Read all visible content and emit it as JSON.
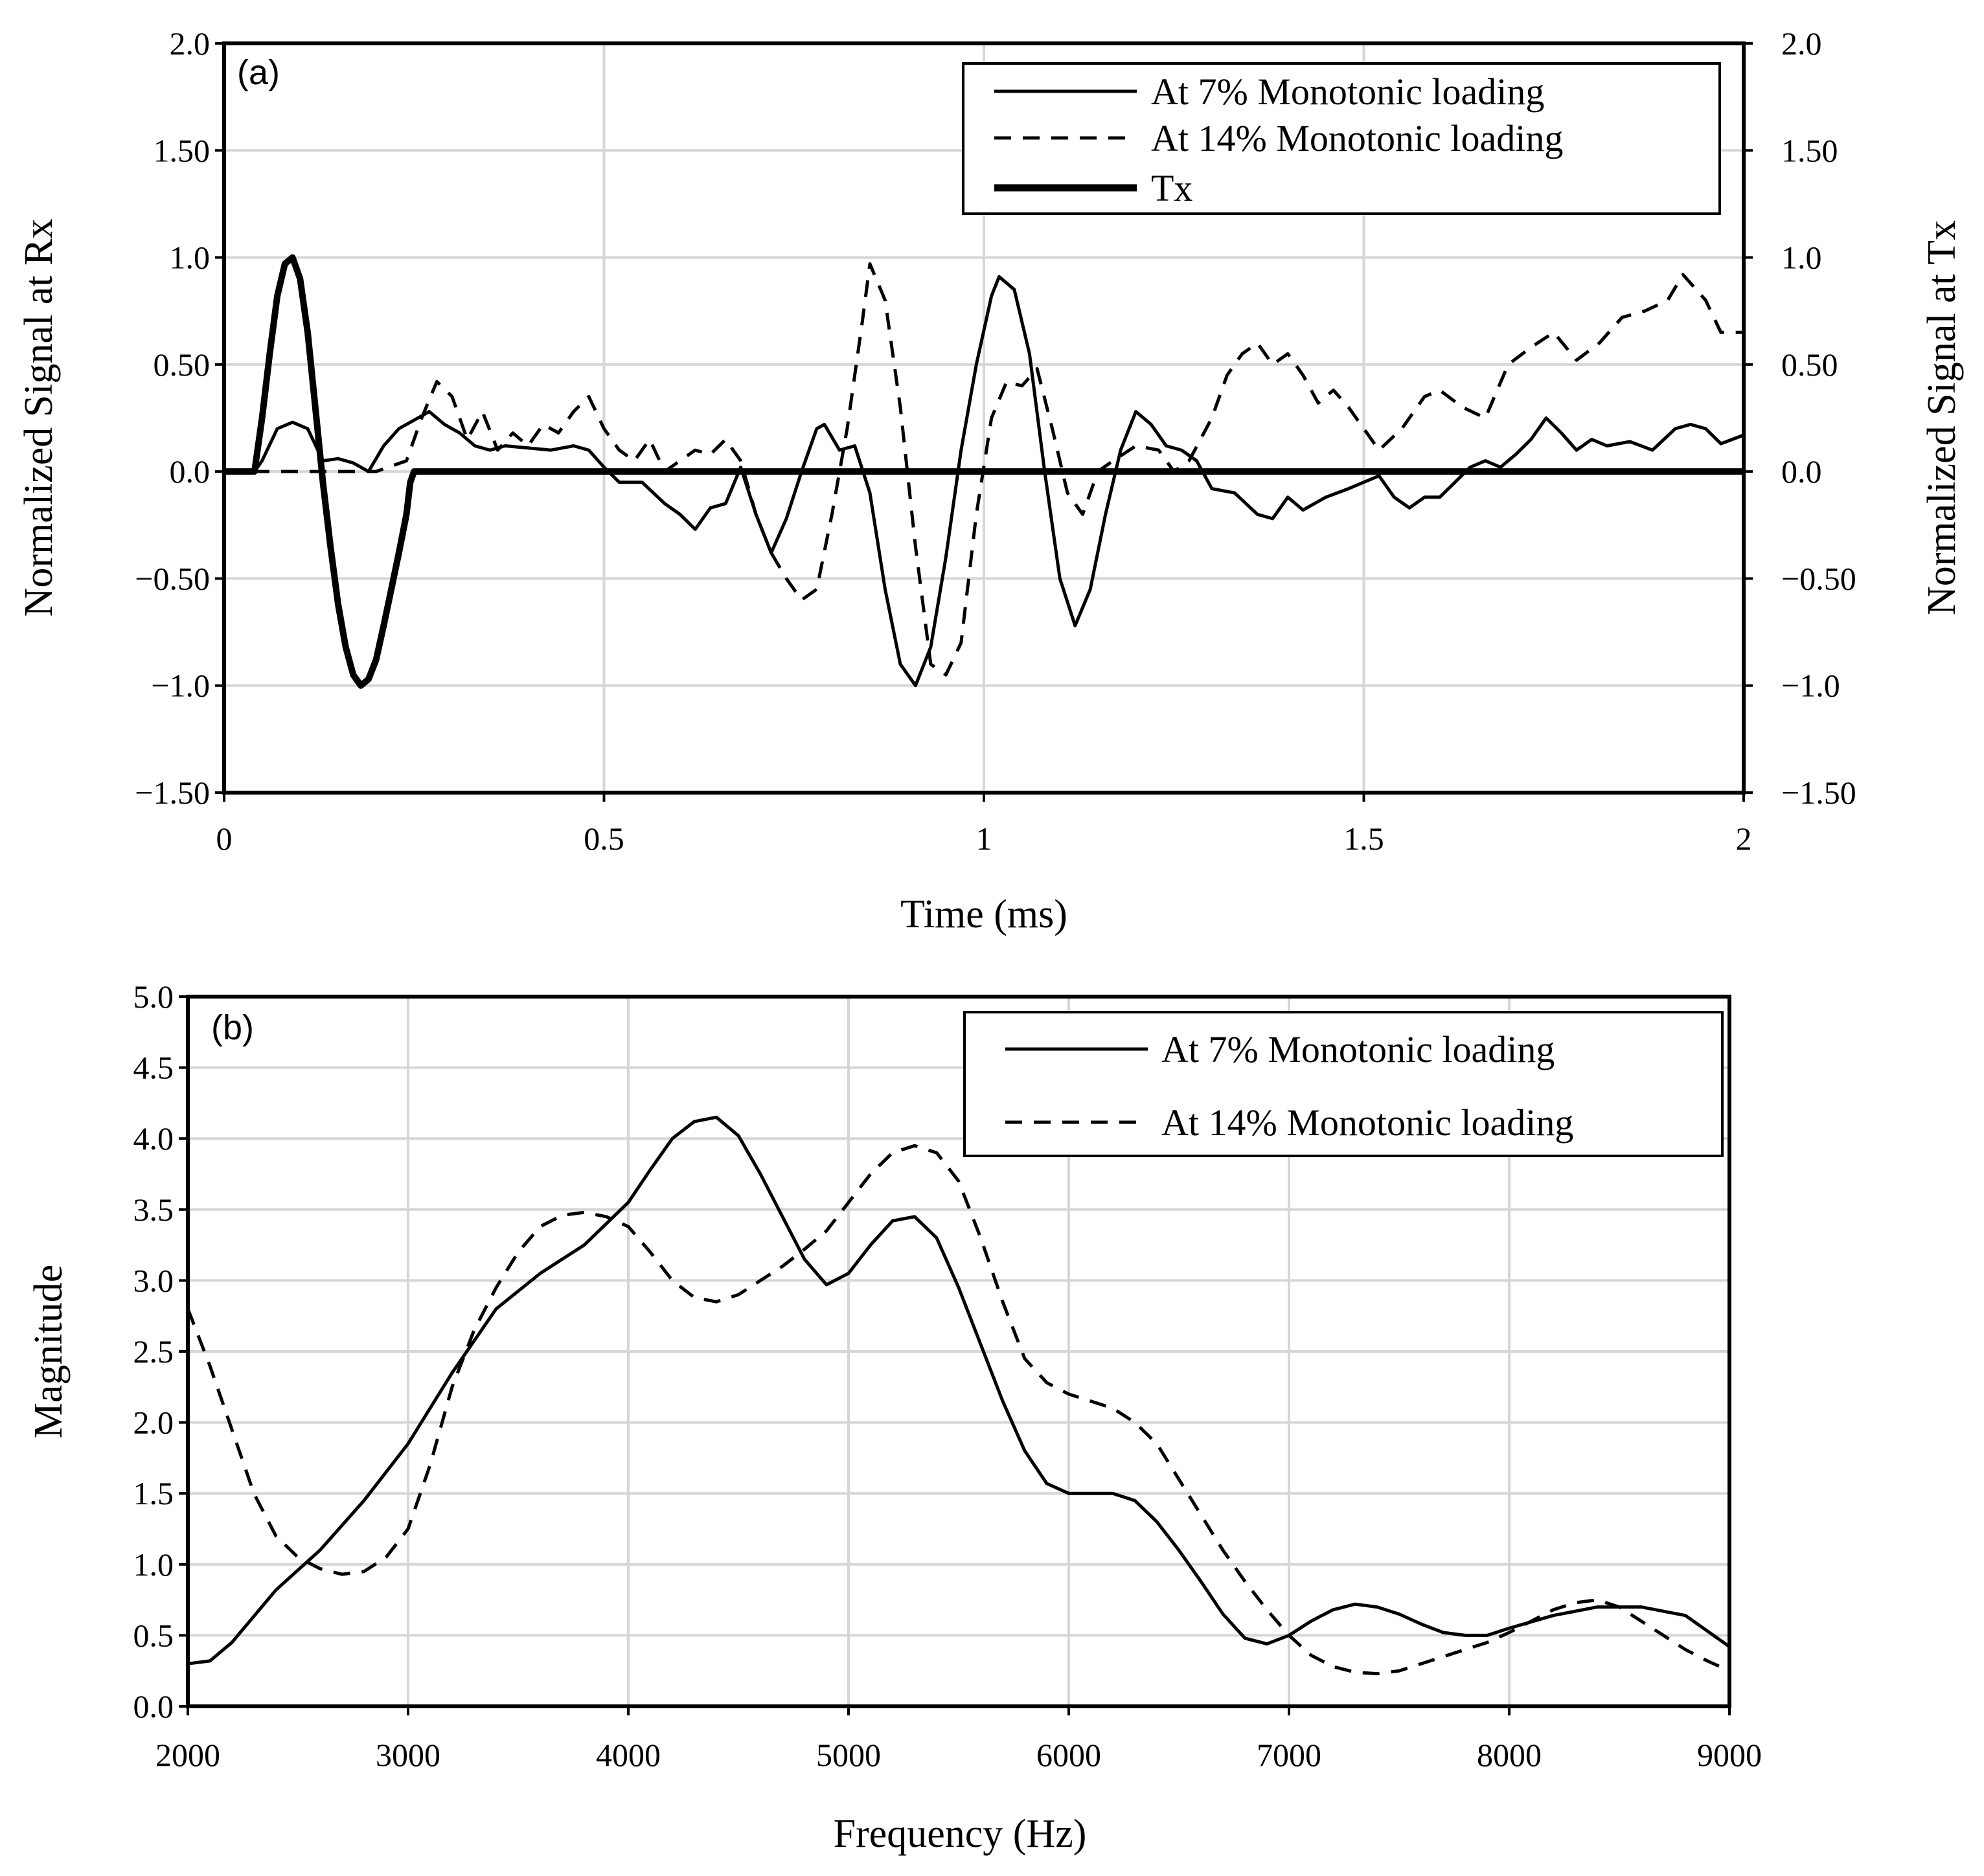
{
  "chart_data": [
    {
      "type": "line",
      "panel_label": "(a)",
      "xlabel": "Time (ms)",
      "ylabel": "Normalized Signal at Rx",
      "y2label": "Normalized Signal at Tx",
      "xlim": [
        0,
        2
      ],
      "ylim": [
        -1.5,
        2.0
      ],
      "xticks": [
        0,
        0.5,
        1,
        1.5,
        2
      ],
      "xtick_labels": [
        "0",
        "0.5",
        "1",
        "1.5",
        "2"
      ],
      "yticks": [
        2.0,
        1.5,
        1.0,
        0.5,
        0.0,
        -0.5,
        -1.0,
        -1.5
      ],
      "ytick_labels": [
        "2.0",
        "1.50",
        "1.0",
        "0.50",
        "0.0",
        "−0.50",
        "−1.0",
        "−1.50"
      ],
      "y2tick_labels": [
        "2.0",
        "1.50",
        "1.0",
        "0.50",
        "0.0",
        "−0.50",
        "−1.0",
        "−1.50"
      ],
      "grid": true,
      "legend_position": "top-right",
      "series": [
        {
          "name": "At 7% Monotonic loading",
          "style": "solid",
          "x": [
            0,
            0.04,
            0.05,
            0.07,
            0.09,
            0.11,
            0.13,
            0.15,
            0.17,
            0.19,
            0.21,
            0.23,
            0.25,
            0.27,
            0.29,
            0.31,
            0.33,
            0.35,
            0.37,
            0.4,
            0.43,
            0.46,
            0.48,
            0.5,
            0.52,
            0.55,
            0.58,
            0.6,
            0.62,
            0.64,
            0.66,
            0.68,
            0.7,
            0.72,
            0.74,
            0.76,
            0.78,
            0.79,
            0.81,
            0.83,
            0.85,
            0.87,
            0.89,
            0.91,
            0.93,
            0.95,
            0.97,
            0.99,
            1.01,
            1.02,
            1.04,
            1.06,
            1.08,
            1.1,
            1.12,
            1.14,
            1.16,
            1.18,
            1.2,
            1.22,
            1.24,
            1.26,
            1.28,
            1.3,
            1.33,
            1.36,
            1.38,
            1.4,
            1.42,
            1.45,
            1.48,
            1.5,
            1.52,
            1.54,
            1.56,
            1.58,
            1.6,
            1.62,
            1.64,
            1.66,
            1.68,
            1.7,
            1.72,
            1.74,
            1.76,
            1.78,
            1.8,
            1.82,
            1.85,
            1.88,
            1.91,
            1.93,
            1.95,
            1.97,
            2.0
          ],
          "values": [
            0.0,
            0.0,
            0.05,
            0.2,
            0.23,
            0.2,
            0.05,
            0.06,
            0.04,
            0.0,
            0.12,
            0.2,
            0.24,
            0.28,
            0.22,
            0.18,
            0.12,
            0.1,
            0.12,
            0.11,
            0.1,
            0.12,
            0.1,
            0.02,
            -0.05,
            -0.05,
            -0.15,
            -0.2,
            -0.27,
            -0.17,
            -0.15,
            0.02,
            -0.2,
            -0.38,
            -0.22,
            0.0,
            0.2,
            0.22,
            0.1,
            0.12,
            -0.1,
            -0.55,
            -0.9,
            -1.0,
            -0.82,
            -0.4,
            0.1,
            0.5,
            0.82,
            0.91,
            0.85,
            0.55,
            0.0,
            -0.5,
            -0.72,
            -0.55,
            -0.2,
            0.1,
            0.28,
            0.22,
            0.12,
            0.1,
            0.05,
            -0.08,
            -0.1,
            -0.2,
            -0.22,
            -0.12,
            -0.18,
            -0.12,
            -0.08,
            -0.05,
            -0.02,
            -0.12,
            -0.17,
            -0.12,
            -0.12,
            -0.05,
            0.02,
            0.05,
            0.02,
            0.08,
            0.15,
            0.25,
            0.18,
            0.1,
            0.15,
            0.12,
            0.14,
            0.1,
            0.2,
            0.22,
            0.2,
            0.13,
            0.17
          ]
        },
        {
          "name": "At 14% Monotonic loading",
          "style": "dashed",
          "x": [
            0,
            0.2,
            0.24,
            0.26,
            0.28,
            0.3,
            0.32,
            0.34,
            0.36,
            0.38,
            0.4,
            0.42,
            0.44,
            0.46,
            0.48,
            0.5,
            0.52,
            0.54,
            0.56,
            0.58,
            0.6,
            0.62,
            0.64,
            0.66,
            0.68,
            0.7,
            0.72,
            0.74,
            0.76,
            0.78,
            0.8,
            0.82,
            0.84,
            0.85,
            0.87,
            0.89,
            0.91,
            0.93,
            0.95,
            0.97,
            0.99,
            1.01,
            1.03,
            1.05,
            1.07,
            1.09,
            1.11,
            1.13,
            1.15,
            1.17,
            1.2,
            1.23,
            1.25,
            1.27,
            1.3,
            1.32,
            1.34,
            1.36,
            1.38,
            1.4,
            1.42,
            1.44,
            1.46,
            1.48,
            1.5,
            1.52,
            1.55,
            1.58,
            1.6,
            1.63,
            1.66,
            1.69,
            1.72,
            1.75,
            1.78,
            1.81,
            1.84,
            1.87,
            1.9,
            1.92,
            1.95,
            1.97,
            2.0
          ],
          "values": [
            0.0,
            0.0,
            0.05,
            0.25,
            0.42,
            0.35,
            0.15,
            0.28,
            0.1,
            0.18,
            0.12,
            0.22,
            0.18,
            0.28,
            0.35,
            0.2,
            0.1,
            0.05,
            0.15,
            0.0,
            0.05,
            0.1,
            0.08,
            0.15,
            0.05,
            -0.2,
            -0.38,
            -0.5,
            -0.6,
            -0.55,
            -0.2,
            0.2,
            0.7,
            0.97,
            0.8,
            0.3,
            -0.35,
            -0.9,
            -0.95,
            -0.8,
            -0.2,
            0.25,
            0.42,
            0.4,
            0.48,
            0.2,
            -0.1,
            -0.2,
            0.0,
            0.05,
            0.12,
            0.1,
            0.0,
            0.05,
            0.25,
            0.45,
            0.55,
            0.6,
            0.5,
            0.55,
            0.45,
            0.32,
            0.38,
            0.3,
            0.2,
            0.1,
            0.2,
            0.35,
            0.38,
            0.3,
            0.25,
            0.5,
            0.58,
            0.65,
            0.52,
            0.6,
            0.72,
            0.75,
            0.8,
            0.92,
            0.8,
            0.65,
            0.65
          ]
        },
        {
          "name": "Tx",
          "style": "thick",
          "x": [
            0,
            0.04,
            0.05,
            0.06,
            0.07,
            0.08,
            0.09,
            0.1,
            0.11,
            0.12,
            0.13,
            0.14,
            0.15,
            0.16,
            0.17,
            0.18,
            0.19,
            0.2,
            0.21,
            0.22,
            0.23,
            0.24,
            0.245,
            0.25,
            2.0
          ],
          "values": [
            0.0,
            0.0,
            0.25,
            0.55,
            0.82,
            0.97,
            1.0,
            0.9,
            0.65,
            0.3,
            -0.05,
            -0.35,
            -0.62,
            -0.82,
            -0.95,
            -1.0,
            -0.97,
            -0.88,
            -0.72,
            -0.55,
            -0.38,
            -0.2,
            -0.05,
            0.0,
            0.0
          ]
        }
      ]
    },
    {
      "type": "line",
      "panel_label": "(b)",
      "xlabel": "Frequency (Hz)",
      "ylabel": "Magnitude",
      "xlim": [
        2000,
        9000
      ],
      "ylim": [
        0,
        5
      ],
      "xticks": [
        2000,
        3000,
        4000,
        5000,
        6000,
        7000,
        8000,
        9000
      ],
      "xtick_labels": [
        "2000",
        "3000",
        "4000",
        "5000",
        "6000",
        "7000",
        "8000",
        "9000"
      ],
      "yticks": [
        5.0,
        4.5,
        4.0,
        3.5,
        3.0,
        2.5,
        2.0,
        1.5,
        1.0,
        0.5,
        0.0
      ],
      "ytick_labels": [
        "5.0",
        "4.5",
        "4.0",
        "3.5",
        "3.0",
        "2.5",
        "2.0",
        "1.5",
        "1.0",
        "0.5",
        "0.0"
      ],
      "grid": true,
      "legend_position": "top-right",
      "series": [
        {
          "name": "At 7% Monotonic loading",
          "style": "solid",
          "x": [
            2000,
            2100,
            2200,
            2400,
            2600,
            2800,
            3000,
            3200,
            3400,
            3600,
            3800,
            4000,
            4100,
            4200,
            4300,
            4400,
            4500,
            4600,
            4700,
            4800,
            4900,
            5000,
            5100,
            5200,
            5300,
            5400,
            5500,
            5600,
            5700,
            5800,
            5900,
            6000,
            6100,
            6200,
            6300,
            6400,
            6500,
            6600,
            6700,
            6800,
            6900,
            7000,
            7100,
            7200,
            7300,
            7400,
            7500,
            7600,
            7700,
            7800,
            7900,
            8000,
            8200,
            8400,
            8600,
            8800,
            9000
          ],
          "values": [
            0.3,
            0.32,
            0.45,
            0.82,
            1.1,
            1.45,
            1.85,
            2.35,
            2.8,
            3.05,
            3.25,
            3.55,
            3.78,
            4.0,
            4.12,
            4.15,
            4.02,
            3.75,
            3.45,
            3.15,
            2.97,
            3.05,
            3.25,
            3.42,
            3.45,
            3.3,
            2.95,
            2.55,
            2.15,
            1.8,
            1.57,
            1.5,
            1.5,
            1.5,
            1.45,
            1.3,
            1.1,
            0.88,
            0.65,
            0.48,
            0.44,
            0.5,
            0.6,
            0.68,
            0.72,
            0.7,
            0.65,
            0.58,
            0.52,
            0.5,
            0.5,
            0.55,
            0.64,
            0.7,
            0.7,
            0.64,
            0.42
          ]
        },
        {
          "name": "At 14% Monotonic loading",
          "style": "dashed",
          "x": [
            2000,
            2100,
            2200,
            2300,
            2400,
            2500,
            2600,
            2700,
            2800,
            2900,
            3000,
            3100,
            3200,
            3300,
            3400,
            3500,
            3600,
            3700,
            3800,
            3900,
            4000,
            4100,
            4200,
            4300,
            4400,
            4500,
            4600,
            4700,
            4800,
            4900,
            5000,
            5100,
            5200,
            5300,
            5400,
            5500,
            5600,
            5700,
            5800,
            5900,
            6000,
            6100,
            6200,
            6300,
            6400,
            6500,
            6600,
            6700,
            6800,
            6900,
            7000,
            7100,
            7200,
            7300,
            7400,
            7500,
            7600,
            7700,
            7800,
            7900,
            8000,
            8100,
            8200,
            8300,
            8400,
            8500,
            8600,
            8700,
            8800,
            8900,
            9000
          ],
          "values": [
            2.8,
            2.4,
            1.95,
            1.5,
            1.2,
            1.05,
            0.97,
            0.93,
            0.95,
            1.05,
            1.25,
            1.7,
            2.25,
            2.65,
            2.95,
            3.2,
            3.38,
            3.46,
            3.48,
            3.45,
            3.38,
            3.2,
            3.0,
            2.88,
            2.85,
            2.9,
            3.0,
            3.1,
            3.22,
            3.35,
            3.55,
            3.75,
            3.9,
            3.95,
            3.9,
            3.7,
            3.3,
            2.85,
            2.45,
            2.28,
            2.2,
            2.15,
            2.1,
            2.0,
            1.85,
            1.6,
            1.35,
            1.1,
            0.88,
            0.68,
            0.5,
            0.36,
            0.28,
            0.24,
            0.23,
            0.25,
            0.3,
            0.35,
            0.4,
            0.45,
            0.52,
            0.6,
            0.68,
            0.73,
            0.75,
            0.7,
            0.6,
            0.5,
            0.4,
            0.32,
            0.25
          ]
        }
      ]
    }
  ]
}
